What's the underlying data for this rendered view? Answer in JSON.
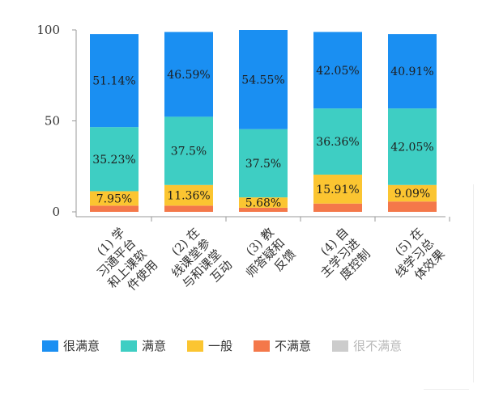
{
  "chart_data": {
    "type": "bar",
    "stacked": true,
    "title": "",
    "xlabel": "",
    "ylabel": "",
    "ylim": [
      0,
      100
    ],
    "yticks": [
      0,
      50,
      100
    ],
    "categories": [
      [
        "(1) 学",
        "习通平台",
        "和上课软",
        "件使用"
      ],
      [
        "(2) 在",
        "线课堂参",
        "与和课堂",
        "互动"
      ],
      [
        "(3) 教",
        "师答疑和",
        "反馈"
      ],
      [
        "(4) 自",
        "主学习进",
        "度控制"
      ],
      [
        "(5) 在",
        "线学习总",
        "体效果"
      ]
    ],
    "series": [
      {
        "name": "不满意",
        "color": "#f4784a",
        "values": [
          3.41,
          3.41,
          2.27,
          4.55,
          5.68
        ],
        "labels": [
          "",
          "",
          "",
          "",
          ""
        ]
      },
      {
        "name": "一般",
        "color": "#fbc531",
        "values": [
          7.95,
          11.36,
          5.68,
          15.91,
          9.09
        ],
        "labels": [
          "7.95%",
          "11.36%",
          "5.68%",
          "15.91%",
          "9.09%"
        ]
      },
      {
        "name": "满意",
        "color": "#3ecec3",
        "values": [
          35.23,
          37.5,
          37.5,
          36.36,
          42.05
        ],
        "labels": [
          "35.23%",
          "37.5%",
          "37.5%",
          "36.36%",
          "42.05%"
        ]
      },
      {
        "name": "很满意",
        "color": "#1a8ff2",
        "values": [
          51.14,
          46.59,
          54.55,
          42.05,
          40.91
        ],
        "labels": [
          "51.14%",
          "46.59%",
          "54.55%",
          "42.05%",
          "40.91%"
        ]
      },
      {
        "name": "很不满意",
        "color": "#cccccc",
        "values": [
          0,
          0,
          0,
          0,
          0
        ],
        "labels": [
          "",
          "",
          "",
          "",
          ""
        ]
      }
    ],
    "legend": {
      "position": "bottom",
      "items": [
        {
          "label": "很满意",
          "color": "#1a8ff2",
          "dim": false
        },
        {
          "label": "满意",
          "color": "#3ecec3",
          "dim": false
        },
        {
          "label": "一般",
          "color": "#fbc531",
          "dim": false
        },
        {
          "label": "不满意",
          "color": "#f4784a",
          "dim": false
        },
        {
          "label": "很不满意",
          "color": "#cccccc",
          "dim": true
        }
      ]
    }
  }
}
